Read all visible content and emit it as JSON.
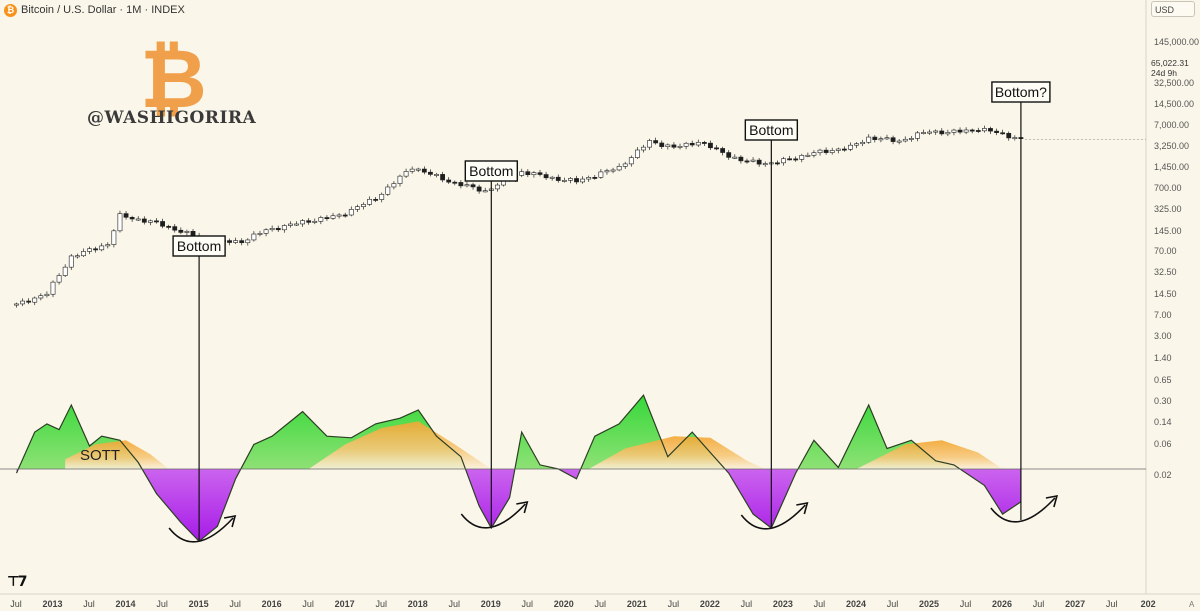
{
  "header": {
    "title": "Bitcoin / U.S. Dollar · 1M · INDEX",
    "coin_symbol": "₿",
    "currency_button": "USD"
  },
  "watermark": {
    "logo_symbol": "₿",
    "handle": "@WASHIGORIRA",
    "logo_color": "#f0a04b"
  },
  "indicator_label": "SOTT",
  "tradingview_mark": "⊤7",
  "price_readout": {
    "price": "65,022.31",
    "countdown": "24d 9h"
  },
  "chart_data": {
    "type": "line",
    "price_scale": "log",
    "right_axis_labels": [
      "145,000.00",
      "32,500.00",
      "14,500.00",
      "7,000.00",
      "3,250.00",
      "1,450.00",
      "700.00",
      "325.00",
      "145.00",
      "70.00",
      "32.50",
      "14.50",
      "7.00",
      "3.00",
      "1.40",
      "0.65",
      "0.30",
      "0.14",
      "0.06",
      "0.02"
    ],
    "x_axis_labels": [
      "Jul",
      "2013",
      "Jul",
      "2014",
      "Jul",
      "2015",
      "Jul",
      "2016",
      "Jul",
      "2017",
      "Jul",
      "2018",
      "Jul",
      "2019",
      "Jul",
      "2020",
      "Jul",
      "2021",
      "Jul",
      "2022",
      "Jul",
      "2023",
      "Jul",
      "2024",
      "Jul",
      "2025",
      "Jul",
      "2026",
      "Jul",
      "2027",
      "Jul",
      "202"
    ],
    "price_series": {
      "name": "BTCUSD monthly",
      "points": [
        [
          "2012-07",
          7
        ],
        [
          "2012-12",
          13
        ],
        [
          "2013-04",
          100
        ],
        [
          "2013-10",
          200
        ],
        [
          "2013-12",
          950
        ],
        [
          "2014-06",
          640
        ],
        [
          "2014-12",
          320
        ],
        [
          "2015-01",
          220
        ],
        [
          "2015-08",
          230
        ],
        [
          "2015-12",
          430
        ],
        [
          "2016-06",
          670
        ],
        [
          "2016-12",
          960
        ],
        [
          "2017-06",
          2500
        ],
        [
          "2017-12",
          14000
        ],
        [
          "2018-06",
          6400
        ],
        [
          "2018-12",
          3700
        ],
        [
          "2019-06",
          10800
        ],
        [
          "2019-12",
          7200
        ],
        [
          "2020-03",
          6400
        ],
        [
          "2020-10",
          13800
        ],
        [
          "2021-03",
          58000
        ],
        [
          "2021-07",
          41000
        ],
        [
          "2021-11",
          57000
        ],
        [
          "2022-06",
          19900
        ],
        [
          "2022-11",
          17100
        ],
        [
          "2023-06",
          30400
        ],
        [
          "2023-12",
          42000
        ],
        [
          "2024-03",
          71000
        ],
        [
          "2024-08",
          59000
        ],
        [
          "2024-12",
          93000
        ],
        [
          "2025-01",
          102000
        ],
        [
          "2025-04",
          94000
        ],
        [
          "2025-09",
          114000
        ],
        [
          "2025-12",
          95000
        ],
        [
          "2026-04",
          65022
        ]
      ]
    },
    "indicator": {
      "name": "SOTT",
      "zero_line": true,
      "points": [
        [
          "2012-07",
          -0.05
        ],
        [
          "2012-10",
          0.45
        ],
        [
          "2012-12",
          0.55
        ],
        [
          "2013-02",
          0.48
        ],
        [
          "2013-04",
          0.78
        ],
        [
          "2013-07",
          0.28
        ],
        [
          "2013-09",
          0.4
        ],
        [
          "2013-12",
          0.35
        ],
        [
          "2014-03",
          0.08
        ],
        [
          "2014-06",
          -0.3
        ],
        [
          "2014-10",
          -0.65
        ],
        [
          "2015-01",
          -0.88
        ],
        [
          "2015-04",
          -0.7
        ],
        [
          "2015-07",
          -0.12
        ],
        [
          "2015-10",
          0.3
        ],
        [
          "2016-01",
          0.4
        ],
        [
          "2016-06",
          0.7
        ],
        [
          "2016-10",
          0.4
        ],
        [
          "2017-02",
          0.38
        ],
        [
          "2017-06",
          0.55
        ],
        [
          "2017-10",
          0.62
        ],
        [
          "2018-01",
          0.72
        ],
        [
          "2018-04",
          0.4
        ],
        [
          "2018-08",
          0.15
        ],
        [
          "2018-11",
          -0.45
        ],
        [
          "2019-01",
          -0.72
        ],
        [
          "2019-04",
          -0.35
        ],
        [
          "2019-06",
          0.45
        ],
        [
          "2019-09",
          0.05
        ],
        [
          "2019-12",
          0.0
        ],
        [
          "2020-03",
          -0.12
        ],
        [
          "2020-06",
          0.4
        ],
        [
          "2020-10",
          0.55
        ],
        [
          "2021-02",
          0.9
        ],
        [
          "2021-06",
          0.15
        ],
        [
          "2021-10",
          0.45
        ],
        [
          "2022-01",
          0.2
        ],
        [
          "2022-04",
          -0.05
        ],
        [
          "2022-08",
          -0.55
        ],
        [
          "2022-11",
          -0.72
        ],
        [
          "2023-03",
          -0.05
        ],
        [
          "2023-06",
          0.35
        ],
        [
          "2023-10",
          0.02
        ],
        [
          "2024-03",
          0.78
        ],
        [
          "2024-06",
          0.25
        ],
        [
          "2024-10",
          0.35
        ],
        [
          "2025-02",
          0.1
        ],
        [
          "2025-05",
          0.05
        ],
        [
          "2025-10",
          -0.2
        ],
        [
          "2026-01",
          -0.55
        ],
        [
          "2026-04",
          -0.4
        ]
      ]
    },
    "annotations": [
      {
        "text": "Bottom",
        "date": "2015-01"
      },
      {
        "text": "Bottom",
        "date": "2019-01"
      },
      {
        "text": "Bottom",
        "date": "2022-11"
      },
      {
        "text": "Bottom?",
        "date": "2026-04"
      }
    ]
  }
}
